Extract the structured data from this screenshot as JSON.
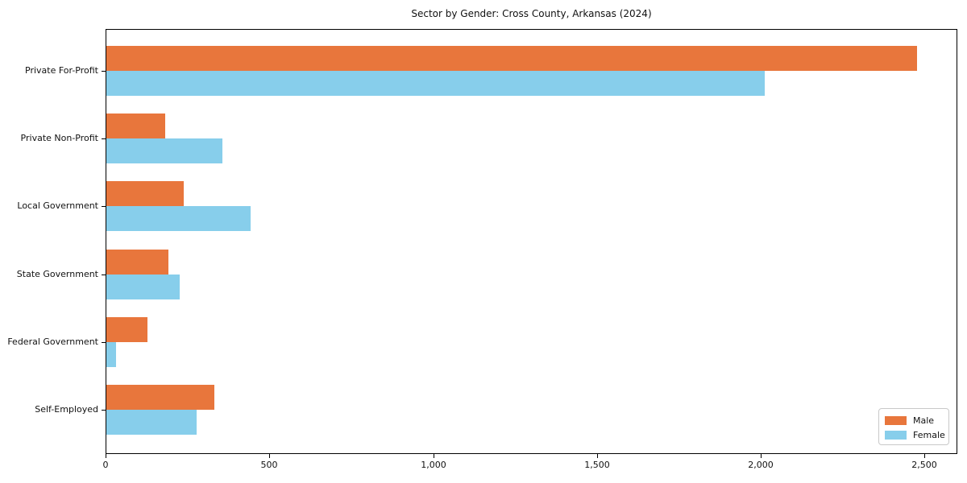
{
  "title": "Sector by Gender: Cross County, Arkansas (2024)",
  "chart_data": {
    "type": "bar",
    "orientation": "horizontal",
    "title": "Sector by Gender: Cross County, Arkansas (2024)",
    "xlabel": "",
    "ylabel": "",
    "categories": [
      "Private For-Profit",
      "Private Non-Profit",
      "Local Government",
      "State Government",
      "Federal Government",
      "Self-Employed"
    ],
    "series": [
      {
        "name": "Male",
        "color": "#e8763c",
        "values": [
          2475,
          180,
          235,
          190,
          125,
          330
        ]
      },
      {
        "name": "Female",
        "color": "#87ceeb",
        "values": [
          2010,
          355,
          440,
          225,
          30,
          275
        ]
      }
    ],
    "xlim": [
      0,
      2600
    ],
    "x_ticks": [
      0,
      500,
      1000,
      1500,
      2000,
      2500
    ],
    "x_tick_labels": [
      "0",
      "500",
      "1,000",
      "1,500",
      "2,000",
      "2,500"
    ],
    "grid": false,
    "legend_position": "lower right"
  },
  "colors": {
    "male": "#e8763c",
    "female": "#87ceeb",
    "axis": "#000000",
    "text": "#111111"
  }
}
